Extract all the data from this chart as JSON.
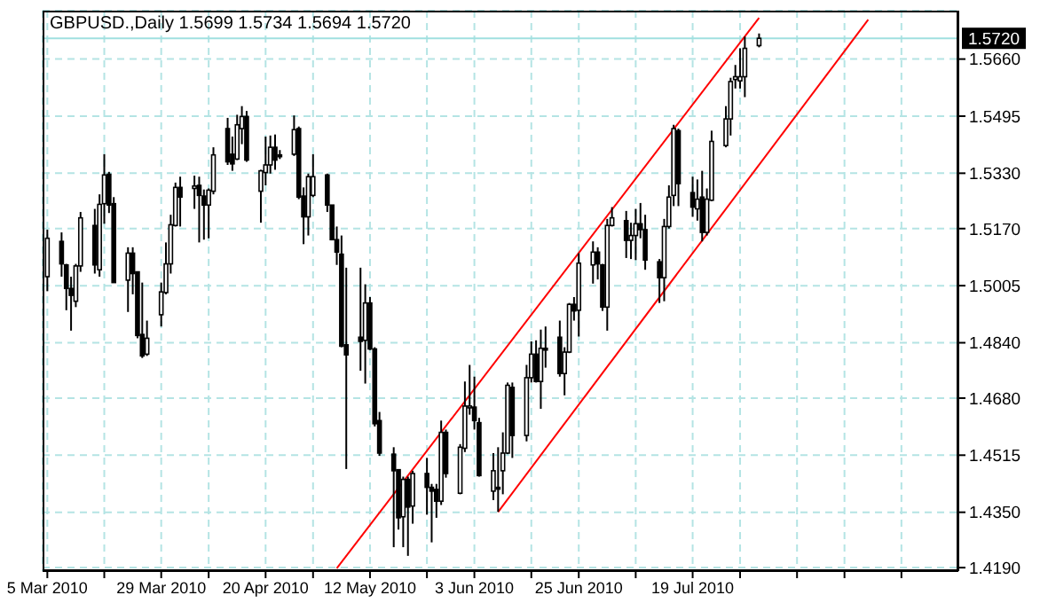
{
  "chart_data": {
    "type": "candlestick",
    "title": "GBPUSD.,Daily 1.5699 1.5734 1.5694 1.5720",
    "color": "#000000",
    "x": [
      "2010-03-05",
      "2010-03-08",
      "2010-03-09",
      "2010-03-10",
      "2010-03-11",
      "2010-03-12",
      "2010-03-15",
      "2010-03-16",
      "2010-03-17",
      "2010-03-18",
      "2010-03-19",
      "2010-03-22",
      "2010-03-23",
      "2010-03-24",
      "2010-03-25",
      "2010-03-26",
      "2010-03-29",
      "2010-03-30",
      "2010-03-31",
      "2010-04-01",
      "2010-04-02",
      "2010-04-05",
      "2010-04-06",
      "2010-04-07",
      "2010-04-08",
      "2010-04-09",
      "2010-04-12",
      "2010-04-13",
      "2010-04-14",
      "2010-04-15",
      "2010-04-16",
      "2010-04-19",
      "2010-04-20",
      "2010-04-21",
      "2010-04-22",
      "2010-04-23",
      "2010-04-26",
      "2010-04-27",
      "2010-04-28",
      "2010-04-29",
      "2010-04-30",
      "2010-05-03",
      "2010-05-04",
      "2010-05-05",
      "2010-05-06",
      "2010-05-07",
      "2010-05-10",
      "2010-05-11",
      "2010-05-12",
      "2010-05-13",
      "2010-05-14",
      "2010-05-17",
      "2010-05-18",
      "2010-05-19",
      "2010-05-20",
      "2010-05-21",
      "2010-05-24",
      "2010-05-25",
      "2010-05-26",
      "2010-05-27",
      "2010-05-28",
      "2010-05-31",
      "2010-06-01",
      "2010-06-02",
      "2010-06-03",
      "2010-06-04",
      "2010-06-07",
      "2010-06-08",
      "2010-06-09",
      "2010-06-10",
      "2010-06-11",
      "2010-06-14",
      "2010-06-15",
      "2010-06-16",
      "2010-06-17",
      "2010-06-18",
      "2010-06-21",
      "2010-06-22",
      "2010-06-23",
      "2010-06-24",
      "2010-06-25",
      "2010-06-28",
      "2010-06-29",
      "2010-06-30",
      "2010-07-01",
      "2010-07-02",
      "2010-07-05",
      "2010-07-06",
      "2010-07-07",
      "2010-07-08",
      "2010-07-09",
      "2010-07-12",
      "2010-07-13",
      "2010-07-14",
      "2010-07-15",
      "2010-07-16",
      "2010-07-19",
      "2010-07-20",
      "2010-07-21",
      "2010-07-22",
      "2010-07-23",
      "2010-07-26",
      "2010-07-27",
      "2010-07-28",
      "2010-07-29",
      "2010-07-30",
      "2010-08-02"
    ],
    "ohlc": [
      [
        1.5031,
        1.5167,
        1.4989,
        1.5142
      ],
      [
        1.5133,
        1.5159,
        1.5031,
        1.5068
      ],
      [
        1.5065,
        1.5068,
        1.4934,
        1.4997
      ],
      [
        1.4997,
        1.5031,
        1.4875,
        1.4977
      ],
      [
        1.496,
        1.5068,
        1.4943,
        1.5062
      ],
      [
        1.5062,
        1.5218,
        1.5045,
        1.5201
      ],
      [
        1.5179,
        1.5227,
        1.504,
        1.5065
      ],
      [
        1.5051,
        1.5269,
        1.5031,
        1.524
      ],
      [
        1.5242,
        1.5385,
        1.5184,
        1.5325
      ],
      [
        1.5327,
        1.5334,
        1.5215,
        1.5238
      ],
      [
        1.5242,
        1.5261,
        1.5014,
        1.5014
      ],
      [
        1.5021,
        1.5116,
        1.4929,
        1.5099
      ],
      [
        1.5099,
        1.5116,
        1.498,
        1.504
      ],
      [
        1.5045,
        1.5045,
        1.4853,
        1.4861
      ],
      [
        1.4864,
        1.5014,
        1.4796,
        1.4802
      ],
      [
        1.4807,
        1.4904,
        1.4802,
        1.4853
      ],
      [
        1.4921,
        1.5014,
        1.4887,
        1.4987
      ],
      [
        1.4985,
        1.513,
        1.498,
        1.5068
      ],
      [
        1.5068,
        1.521,
        1.504,
        1.5181
      ],
      [
        1.5179,
        1.5303,
        1.5176,
        1.5289
      ],
      [
        1.5289,
        1.532,
        1.5176,
        1.5261
      ],
      [
        1.5286,
        1.5323,
        1.5227,
        1.5293
      ],
      [
        1.5295,
        1.532,
        1.513,
        1.5266
      ],
      [
        1.5264,
        1.5283,
        1.5138,
        1.5238
      ],
      [
        1.5238,
        1.5286,
        1.5142,
        1.5281
      ],
      [
        1.5278,
        1.5405,
        1.5269,
        1.5383
      ],
      [
        1.5459,
        1.549,
        1.5354,
        1.5363
      ],
      [
        1.5385,
        1.5436,
        1.5337,
        1.5357
      ],
      [
        1.5371,
        1.5499,
        1.5368,
        1.547
      ],
      [
        1.5459,
        1.5524,
        1.5414,
        1.5494
      ],
      [
        1.5494,
        1.551,
        1.5363,
        1.5368
      ],
      [
        1.5278,
        1.534,
        1.5187,
        1.5337
      ],
      [
        1.5332,
        1.5436,
        1.5295,
        1.5354
      ],
      [
        1.5354,
        1.5439,
        1.5329,
        1.5405
      ],
      [
        1.5405,
        1.5442,
        1.534,
        1.5368
      ],
      [
        1.5383,
        1.5397,
        1.5371,
        1.5378
      ],
      [
        1.5385,
        1.5497,
        1.538,
        1.5456
      ],
      [
        1.5459,
        1.5465,
        1.5255,
        1.5261
      ],
      [
        1.5264,
        1.5289,
        1.5125,
        1.5204
      ],
      [
        1.5204,
        1.5329,
        1.515,
        1.532
      ],
      [
        1.5266,
        1.5385,
        1.5261,
        1.532
      ],
      [
        1.5325,
        1.5329,
        1.5218,
        1.5238
      ],
      [
        1.5238,
        1.5238,
        1.5136,
        1.5138
      ],
      [
        1.5138,
        1.5176,
        1.5065,
        1.5102
      ],
      [
        1.5096,
        1.515,
        1.4827,
        1.483
      ],
      [
        1.4834,
        1.5057,
        1.4475,
        1.4805
      ],
      [
        1.4856,
        1.5057,
        1.4759,
        1.4844
      ],
      [
        1.4847,
        1.5009,
        1.4722,
        1.4955
      ],
      [
        1.4955,
        1.4972,
        1.4819,
        1.4822
      ],
      [
        1.4822,
        1.4827,
        1.4598,
        1.4606
      ],
      [
        1.4615,
        1.464,
        1.4513,
        1.4521
      ],
      [
        1.4518,
        1.4538,
        1.4249,
        1.447
      ],
      [
        1.4473,
        1.4473,
        1.43,
        1.4334
      ],
      [
        1.4337,
        1.4453,
        1.4249,
        1.4445
      ],
      [
        1.4445,
        1.4453,
        1.4224,
        1.4365
      ],
      [
        1.4368,
        1.447,
        1.4317,
        1.4462
      ],
      [
        1.4462,
        1.4507,
        1.4343,
        1.4422
      ],
      [
        1.4422,
        1.4432,
        1.4263,
        1.4411
      ],
      [
        1.4416,
        1.4432,
        1.4334,
        1.4382
      ],
      [
        1.4382,
        1.4615,
        1.4371,
        1.4581
      ],
      [
        1.4581,
        1.4589,
        1.445,
        1.4462
      ],
      [
        1.4405,
        1.4547,
        1.4402,
        1.4538
      ],
      [
        1.4535,
        1.4728,
        1.4524,
        1.4657
      ],
      [
        1.4654,
        1.4776,
        1.4632,
        1.4657
      ],
      [
        1.4654,
        1.4742,
        1.4589,
        1.4615
      ],
      [
        1.4609,
        1.4623,
        1.4453,
        1.4456
      ],
      [
        1.4411,
        1.4521,
        1.4385,
        1.447
      ],
      [
        1.4422,
        1.4538,
        1.4351,
        1.4421
      ],
      [
        1.447,
        1.4581,
        1.4402,
        1.4521
      ],
      [
        1.4521,
        1.4725,
        1.4518,
        1.4717
      ],
      [
        1.4711,
        1.4725,
        1.4507,
        1.4572
      ],
      [
        1.4572,
        1.4776,
        1.4555,
        1.4739
      ],
      [
        1.4739,
        1.4844,
        1.4725,
        1.4807
      ],
      [
        1.4807,
        1.4847,
        1.4725,
        1.4728
      ],
      [
        1.4728,
        1.4878,
        1.4649,
        1.4824
      ],
      [
        1.4824,
        1.4887,
        1.4768,
        1.4822
      ],
      [
        1.4856,
        1.4904,
        1.4742,
        1.4751
      ],
      [
        1.4751,
        1.4827,
        1.4688,
        1.4813
      ],
      [
        1.4813,
        1.4955,
        1.481,
        1.4951
      ],
      [
        1.4951,
        1.4972,
        1.4904,
        1.4932
      ],
      [
        1.4934,
        1.5099,
        1.4858,
        1.507
      ],
      [
        1.5065,
        1.5133,
        1.5011,
        1.5102
      ],
      [
        1.5102,
        1.5116,
        1.5023,
        1.5068
      ],
      [
        1.5065,
        1.5068,
        1.4932,
        1.4943
      ],
      [
        1.4943,
        1.5198,
        1.4875,
        1.5179
      ],
      [
        1.5179,
        1.5232,
        1.5176,
        1.5201
      ],
      [
        1.5193,
        1.5221,
        1.5085,
        1.5136
      ],
      [
        1.5136,
        1.5187,
        1.5082,
        1.515
      ],
      [
        1.515,
        1.5227,
        1.5079,
        1.5184
      ],
      [
        1.5184,
        1.5244,
        1.5142,
        1.5167
      ],
      [
        1.5167,
        1.521,
        1.5051,
        1.5079
      ],
      [
        1.5074,
        1.5082,
        1.4955,
        1.5028
      ],
      [
        1.5028,
        1.5198,
        1.496,
        1.5176
      ],
      [
        1.5176,
        1.5295,
        1.517,
        1.5261
      ],
      [
        1.5266,
        1.547,
        1.5235,
        1.5459
      ],
      [
        1.5453,
        1.5459,
        1.5235,
        1.53
      ],
      [
        1.5274,
        1.532,
        1.5204,
        1.5232
      ],
      [
        1.5227,
        1.5312,
        1.5193,
        1.5255
      ],
      [
        1.5261,
        1.5337,
        1.5133,
        1.5159
      ],
      [
        1.5159,
        1.5286,
        1.515,
        1.5255
      ],
      [
        1.5252,
        1.5453,
        1.5249,
        1.5422
      ],
      [
        1.541,
        1.5524,
        1.5405,
        1.5487
      ],
      [
        1.5487,
        1.5606,
        1.5439,
        1.5595
      ],
      [
        1.5601,
        1.5643,
        1.5575,
        1.5609
      ],
      [
        1.5597,
        1.5691,
        1.5575,
        1.5609
      ],
      [
        1.5609,
        1.5725,
        1.555,
        1.5691
      ],
      [
        1.5699,
        1.5734,
        1.5694,
        1.572
      ]
    ],
    "series": [
      {
        "type": "line",
        "color": "#ff0000",
        "x": [
          "2010-05-05",
          "2010-08-02"
        ],
        "values": [
          1.4188,
          1.5779
        ]
      },
      {
        "type": "line",
        "color": "#ff0000",
        "x": [
          "2010-06-08",
          "2010-08-25"
        ],
        "values": [
          1.4351,
          1.5774
        ]
      }
    ],
    "xlim": [
      "2010-03-04",
      "2010-09-13"
    ],
    "xticks": [
      {
        "value": "2010-03-05",
        "label": "5 Mar 2010"
      },
      {
        "value": "2010-03-17",
        "label": null
      },
      {
        "value": "2010-03-29",
        "label": "29 Mar 2010"
      },
      {
        "value": "2010-04-08",
        "label": null
      },
      {
        "value": "2010-04-20",
        "label": "20 Apr 2010"
      },
      {
        "value": "2010-04-30",
        "label": null
      },
      {
        "value": "2010-05-12",
        "label": "12 May 2010"
      },
      {
        "value": "2010-05-24",
        "label": null
      },
      {
        "value": "2010-06-03",
        "label": "3 Jun 2010"
      },
      {
        "value": "2010-06-15",
        "label": null
      },
      {
        "value": "2010-06-25",
        "label": "25 Jun 2010"
      },
      {
        "value": "2010-07-07",
        "label": null
      },
      {
        "value": "2010-07-19",
        "label": "19 Jul 2010"
      },
      {
        "value": "2010-07-29",
        "label": null
      },
      {
        "value": "2010-08-10",
        "label": null
      },
      {
        "value": "2010-08-20",
        "label": null
      },
      {
        "value": "2010-09-01",
        "label": null
      }
    ],
    "ylim": [
      1.418,
      1.58
    ],
    "yticks": [
      {
        "value": 1.419,
        "label": "1.4190"
      },
      {
        "value": 1.435,
        "label": "1.4350"
      },
      {
        "value": 1.4515,
        "label": "1.4515"
      },
      {
        "value": 1.468,
        "label": "1.4680"
      },
      {
        "value": 1.484,
        "label": "1.4840"
      },
      {
        "value": 1.5005,
        "label": "1.5005"
      },
      {
        "value": 1.517,
        "label": "1.5170"
      },
      {
        "value": 1.533,
        "label": "1.5330"
      },
      {
        "value": 1.5495,
        "label": "1.5495"
      },
      {
        "value": 1.566,
        "label": "1.5660"
      }
    ],
    "ref_lines": [
      {
        "axis": "y",
        "value": 1.572,
        "label": "1.5720",
        "color": "#a0e0e0"
      }
    ],
    "grid": true
  }
}
